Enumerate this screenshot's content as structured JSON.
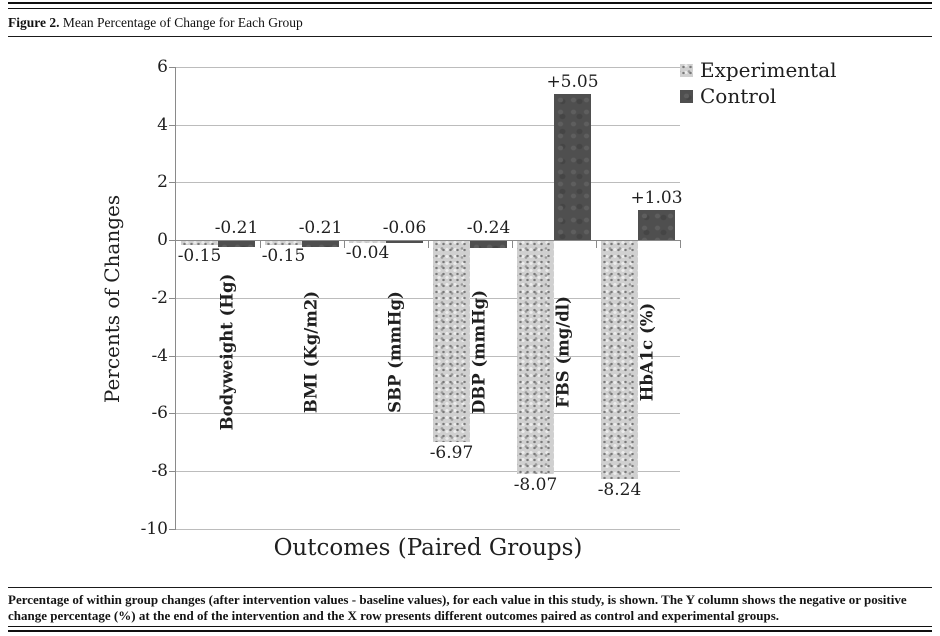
{
  "header": {
    "figure_label": "Figure 2.",
    "figure_title": "Mean Percentage of Change for Each Group"
  },
  "footer": {
    "caption": "Percentage of within group changes (after intervention values - baseline values), for each value in this study, is shown. The Y column shows the negative or positive change percentage (%) at the end of the intervention and the X row presents different outcomes paired as control and experimental groups."
  },
  "colors": {
    "experimental_bar": "#d0d0d0",
    "control_bar": "#4f4f4f",
    "gridline": "#bcbcbc",
    "axis": "#8a8a8a",
    "text": "#1f1f1f"
  },
  "chart_data": {
    "type": "bar",
    "categories": [
      "Bodyweight (Hg)",
      "BMI (Kg/m2)",
      "SBP (mmHg)",
      "DBP (mmHg)",
      "FBS (mg/dl)",
      "HbA1c (%)"
    ],
    "series": [
      {
        "name": "Experimental",
        "values": [
          -0.15,
          -0.15,
          -0.04,
          -6.97,
          -8.07,
          -8.24
        ],
        "labels": [
          "-0.15",
          "-0.15",
          "-0.04",
          "-6.97",
          "-8.07",
          "-8.24"
        ],
        "label_side": "below",
        "swatch": "speckled-light"
      },
      {
        "name": "Control",
        "values": [
          -0.21,
          -0.21,
          -0.06,
          -0.24,
          5.05,
          1.03
        ],
        "labels": [
          "-0.21",
          "-0.21",
          "-0.06",
          "-0.24",
          "+5.05",
          "+1.03"
        ],
        "label_side": "above",
        "swatch": "solid-dark"
      }
    ],
    "xlabel": "Outcomes (Paired Groups)",
    "ylabel": "Percents of Changes",
    "ylim": [
      -10,
      6
    ],
    "yticks": [
      6,
      4,
      2,
      0,
      -2,
      -4,
      -6,
      -8,
      -10
    ],
    "grid": true,
    "legend_position": "top-right"
  }
}
